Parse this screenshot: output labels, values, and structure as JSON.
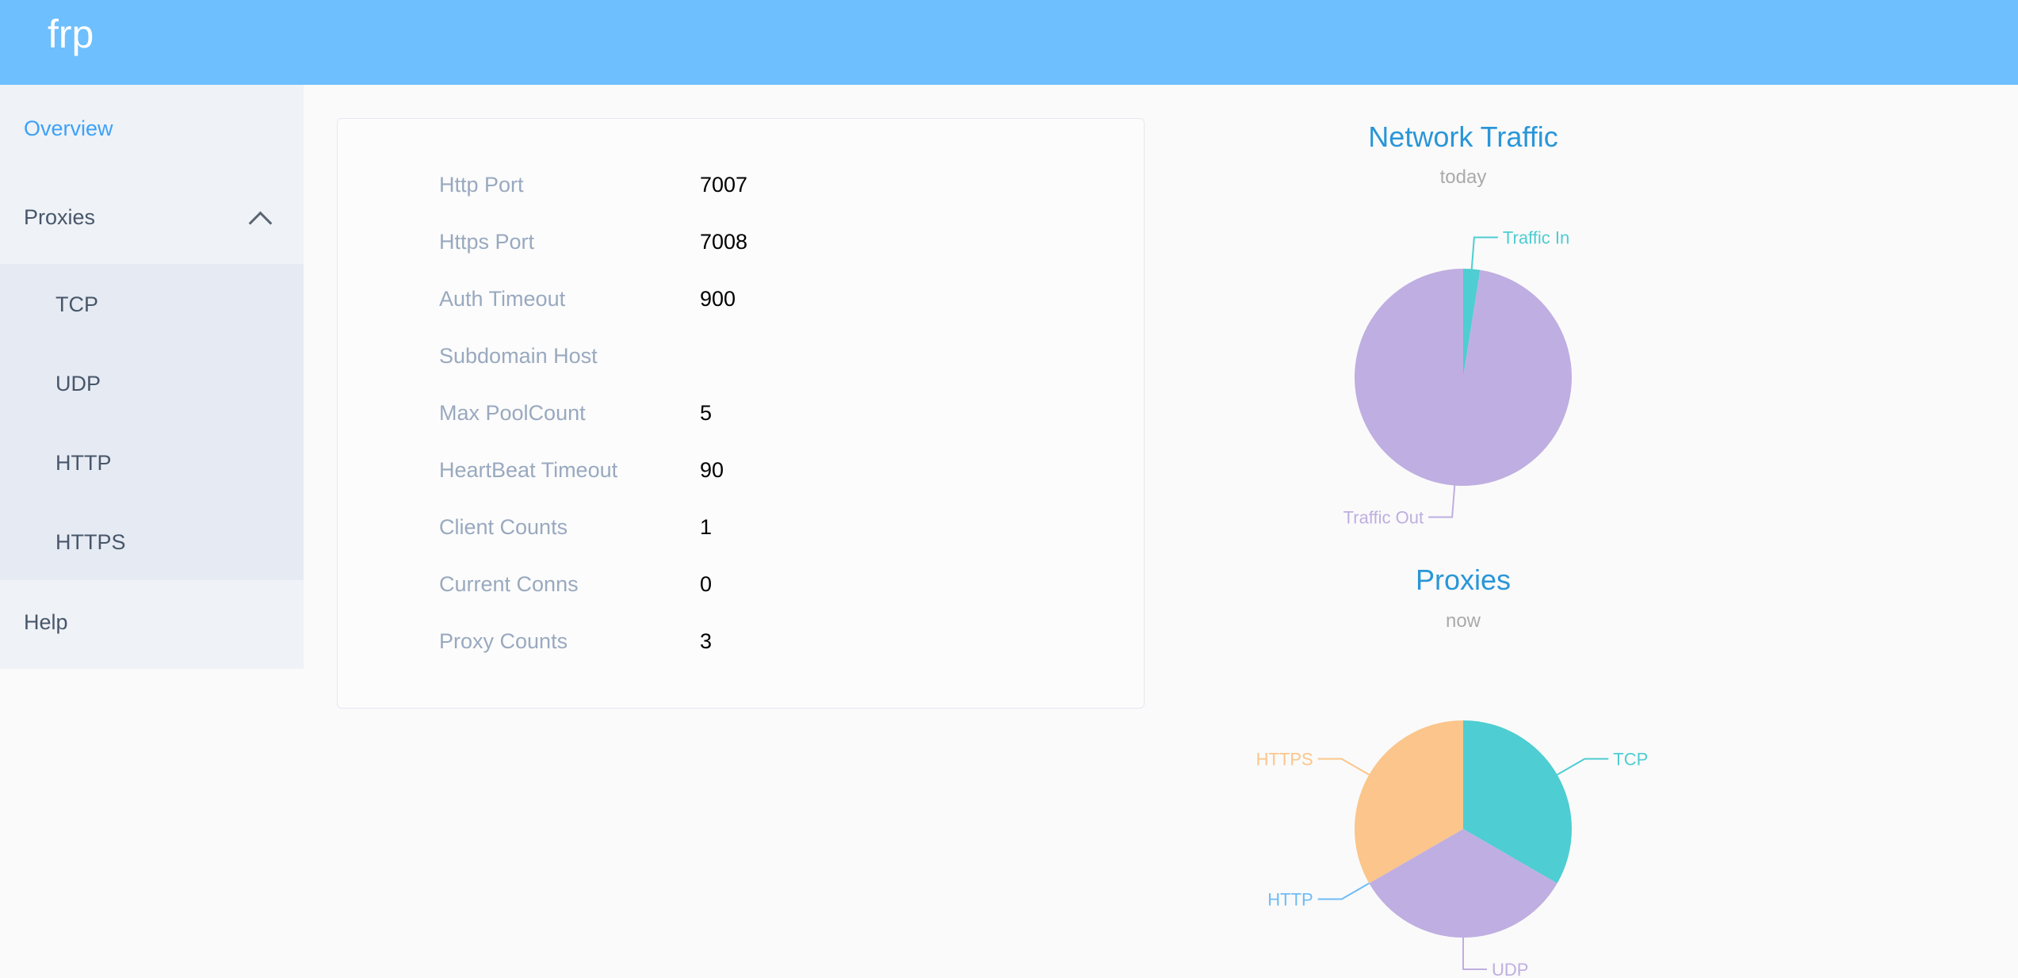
{
  "header": {
    "title": "frp",
    "color": "#6ebffe"
  },
  "sidebar": {
    "overview": "Overview",
    "proxies": "Proxies",
    "sub_items": [
      "TCP",
      "UDP",
      "HTTP",
      "HTTPS"
    ],
    "help": "Help"
  },
  "info": [
    {
      "label": "Http Port",
      "value": "7007"
    },
    {
      "label": "Https Port",
      "value": "7008"
    },
    {
      "label": "Auth Timeout",
      "value": "900"
    },
    {
      "label": "Subdomain Host",
      "value": ""
    },
    {
      "label": "Max PoolCount",
      "value": "5"
    },
    {
      "label": "HeartBeat Timeout",
      "value": "90"
    },
    {
      "label": "Client Counts",
      "value": "1"
    },
    {
      "label": "Current Conns",
      "value": "0"
    },
    {
      "label": "Proxy Counts",
      "value": "3"
    }
  ],
  "chart_data": [
    {
      "type": "pie",
      "title": "Network Traffic",
      "subtitle": "today",
      "slices": [
        {
          "name": "Traffic In",
          "value": 2.5,
          "color": "#4ecdd2"
        },
        {
          "name": "Traffic Out",
          "value": 97.5,
          "color": "#bfaee1"
        }
      ]
    },
    {
      "type": "pie",
      "title": "Proxies",
      "subtitle": "now",
      "slices": [
        {
          "name": "TCP",
          "value": 1,
          "color": "#4ecdd2"
        },
        {
          "name": "UDP",
          "value": 1,
          "color": "#bfaee1"
        },
        {
          "name": "HTTP",
          "value": 0,
          "color": "#6fbcf5"
        },
        {
          "name": "HTTPS",
          "value": 1,
          "color": "#fbc58b"
        }
      ]
    }
  ]
}
